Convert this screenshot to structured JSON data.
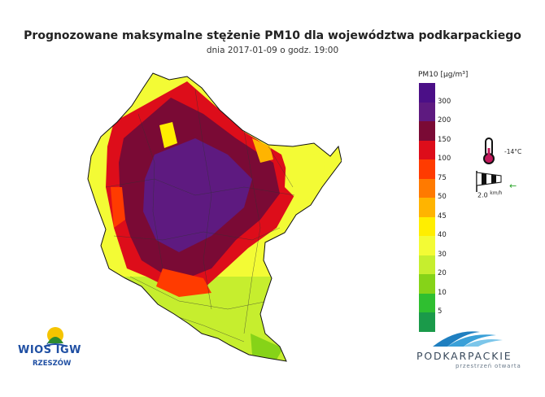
{
  "header": {
    "title": "Prognozowane maksymalne stężenie PM10 dla województwa podkarpackiego",
    "subtitle": "dnia 2017-01-09 o godz. 19:00"
  },
  "legend": {
    "unit": "PM10 [µg/m³]",
    "classes": [
      {
        "label": "300",
        "color": "#4b0f87"
      },
      {
        "label": "200",
        "color": "#5e1a80"
      },
      {
        "label": "150",
        "color": "#7a0a35"
      },
      {
        "label": "100",
        "color": "#dd0d1a"
      },
      {
        "label": "75",
        "color": "#ff3b00"
      },
      {
        "label": "50",
        "color": "#ff7a00"
      },
      {
        "label": "45",
        "color": "#ffb400"
      },
      {
        "label": "40",
        "color": "#ffee00"
      },
      {
        "label": "30",
        "color": "#f3fb35"
      },
      {
        "label": "20",
        "color": "#c6ee2e"
      },
      {
        "label": "10",
        "color": "#86d318"
      },
      {
        "label": "5",
        "color": "#2fbf30"
      },
      {
        "label": "",
        "color": "#1a9a4a"
      }
    ]
  },
  "weather": {
    "temperature": "-14°C",
    "wind_speed": "2.0",
    "wind_unit": "km/h"
  },
  "logos": {
    "wios_name": "WIOŚ IGW",
    "wios_city": "RZESZÓW",
    "podkarpackie": "PODKARPACKIE",
    "podkarpackie_tagline": "przestrzeń otwarta"
  }
}
